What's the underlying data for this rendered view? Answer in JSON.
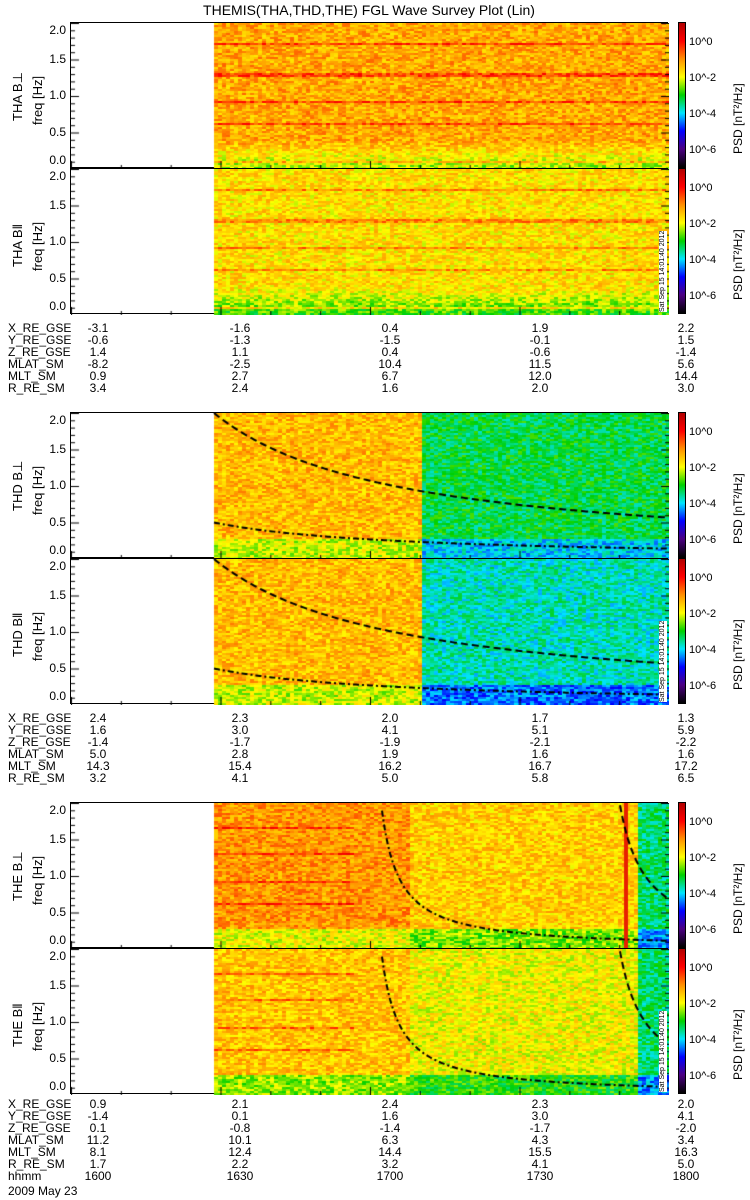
{
  "title": "THEMIS(THA,THD,THE) FGL Wave Survey Plot (Lin)",
  "stamp": "Sat Sep 15 14:01:40 2012",
  "yticks": [
    "0.0",
    "0.5",
    "1.0",
    "1.5",
    "2.0"
  ],
  "colorbar": {
    "title": "PSD [nT²/Hz]",
    "ticks": [
      "10^0",
      "10^-2",
      "10^-4",
      "10^-6"
    ]
  },
  "panels": [
    {
      "probe": "THA B⊥",
      "ylabel": "freq [Hz]"
    },
    {
      "probe": "THA B‖",
      "ylabel": "freq [Hz]"
    },
    {
      "probe": "THD B⊥",
      "ylabel": "freq [Hz]"
    },
    {
      "probe": "THD B‖",
      "ylabel": "freq [Hz]"
    },
    {
      "probe": "THE B⊥",
      "ylabel": "freq [Hz]"
    },
    {
      "probe": "THE B‖",
      "ylabel": "freq [Hz]"
    }
  ],
  "tables": [
    {
      "rows": [
        [
          "X_RE_GSE",
          "-3.1",
          "-1.6",
          "0.4",
          "1.9",
          "2.2"
        ],
        [
          "Y_RE_GSE",
          "-0.6",
          "-1.3",
          "-1.5",
          "-0.1",
          "1.5"
        ],
        [
          "Z_RE_GSE",
          "1.4",
          "1.1",
          "0.4",
          "-0.6",
          "-1.4"
        ],
        [
          "MLAT_SM",
          "-8.2",
          "-2.5",
          "10.4",
          "11.5",
          "5.6"
        ],
        [
          "MLT_SM",
          "0.9",
          "2.7",
          "6.7",
          "12.0",
          "14.4"
        ],
        [
          "R_RE_SM",
          "3.4",
          "2.4",
          "1.6",
          "2.0",
          "3.0"
        ]
      ]
    },
    {
      "rows": [
        [
          "X_RE_GSE",
          "2.4",
          "2.3",
          "2.0",
          "1.7",
          "1.3"
        ],
        [
          "Y_RE_GSE",
          "1.6",
          "3.0",
          "4.1",
          "5.1",
          "5.9"
        ],
        [
          "Z_RE_GSE",
          "-1.4",
          "-1.7",
          "-1.9",
          "-2.1",
          "-2.2"
        ],
        [
          "MLAT_SM",
          "5.0",
          "2.8",
          "1.9",
          "1.6",
          "1.6"
        ],
        [
          "MLT_SM",
          "14.3",
          "15.4",
          "16.2",
          "16.7",
          "17.2"
        ],
        [
          "R_RE_SM",
          "3.2",
          "4.1",
          "5.0",
          "5.8",
          "6.5"
        ]
      ]
    },
    {
      "rows": [
        [
          "X_RE_GSE",
          "0.9",
          "2.1",
          "2.4",
          "2.3",
          "2.0"
        ],
        [
          "Y_RE_GSE",
          "-1.4",
          "0.1",
          "1.6",
          "3.0",
          "4.1"
        ],
        [
          "Z_RE_GSE",
          "0.1",
          "-0.8",
          "-1.4",
          "-1.7",
          "-2.0"
        ],
        [
          "MLAT_SM",
          "11.2",
          "10.1",
          "6.3",
          "4.3",
          "3.4"
        ],
        [
          "MLT_SM",
          "8.1",
          "12.4",
          "14.4",
          "15.5",
          "16.3"
        ],
        [
          "R_RE_SM",
          "1.7",
          "2.2",
          "3.2",
          "4.1",
          "5.0"
        ],
        [
          "hhmm",
          "1600",
          "1630",
          "1700",
          "1730",
          "1800"
        ]
      ]
    }
  ],
  "date": "2009 May 23",
  "chart_data": {
    "type": "heatmap",
    "title": "THEMIS(THA,THD,THE) FGL Wave Survey Plot (Lin)",
    "xlabel": "hhmm",
    "x_ticks": [
      "1600",
      "1630",
      "1700",
      "1730",
      "1800"
    ],
    "ylabel": "freq [Hz]",
    "ylim": [
      0,
      2
    ],
    "zlabel": "PSD [nT^2/Hz]",
    "zlim": [
      "1e-6",
      "1e1"
    ],
    "data_start": "~1619"
  }
}
